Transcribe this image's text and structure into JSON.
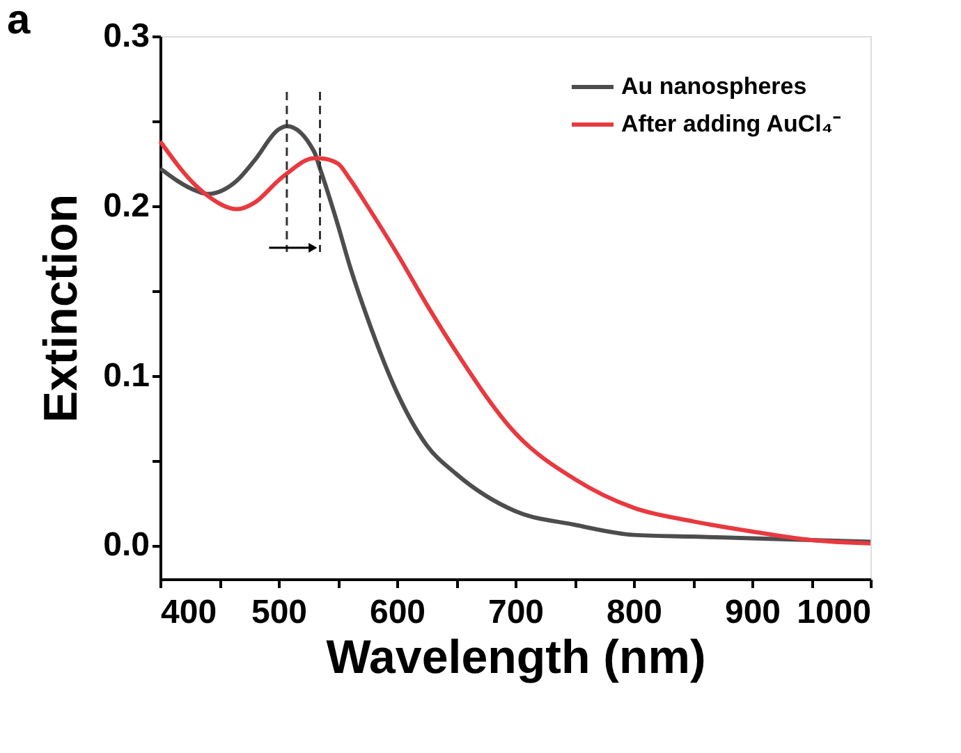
{
  "chart_data": {
    "type": "line",
    "title": "a",
    "xlabel": "Wavelength (nm)",
    "ylabel": "Extinction",
    "x": [
      400,
      430,
      440,
      465,
      480,
      500,
      507,
      530,
      535,
      550,
      560,
      575,
      600,
      625,
      650,
      700,
      750,
      800,
      850,
      900,
      950,
      1000
    ],
    "series": [
      {
        "name": "Au nanospheres",
        "color": "#4d4d4d",
        "values": [
          0.222,
          0.209,
          0.207,
          0.215,
          0.227,
          0.245,
          0.247,
          0.232,
          0.222,
          0.189,
          0.165,
          0.134,
          0.09,
          0.059,
          0.042,
          0.02,
          0.012,
          0.006,
          0.005,
          0.004,
          0.003,
          0.002
        ]
      },
      {
        "name": "After adding AuCl₄⁻",
        "color": "#e8393f",
        "values": [
          0.238,
          0.212,
          0.206,
          0.198,
          0.202,
          0.215,
          0.219,
          0.228,
          0.228,
          0.225,
          0.216,
          0.2,
          0.172,
          0.142,
          0.114,
          0.066,
          0.039,
          0.022,
          0.014,
          0.008,
          0.003,
          0.001
        ]
      }
    ],
    "xlim": [
      400,
      1000
    ],
    "ylim": [
      -0.02,
      0.3
    ],
    "xticks": [
      400,
      {
        "value": 450,
        "label": null
      },
      500,
      {
        "value": 550,
        "label": null
      },
      600,
      {
        "value": 650,
        "label": null
      },
      700,
      {
        "value": 750,
        "label": null
      },
      800,
      {
        "value": 850,
        "label": null
      },
      900,
      {
        "value": 950,
        "label": null
      },
      1000
    ],
    "yticks": [
      {
        "value": 0,
        "label": "0.0"
      },
      {
        "value": 0.05,
        "label": null
      },
      0.1,
      {
        "value": 0.15,
        "label": null
      },
      0.2,
      {
        "value": 0.25,
        "label": null
      },
      0.3
    ],
    "ref_lines": [
      {
        "axis": "x",
        "value": 507,
        "label": null,
        "line_style": "dashed",
        "color": "#333333"
      },
      {
        "axis": "x",
        "value": 535,
        "label": null,
        "line_style": "dashed",
        "color": "#333333"
      }
    ],
    "legend": "top right",
    "grid": false,
    "marker": "none",
    "line_style": "solid"
  }
}
